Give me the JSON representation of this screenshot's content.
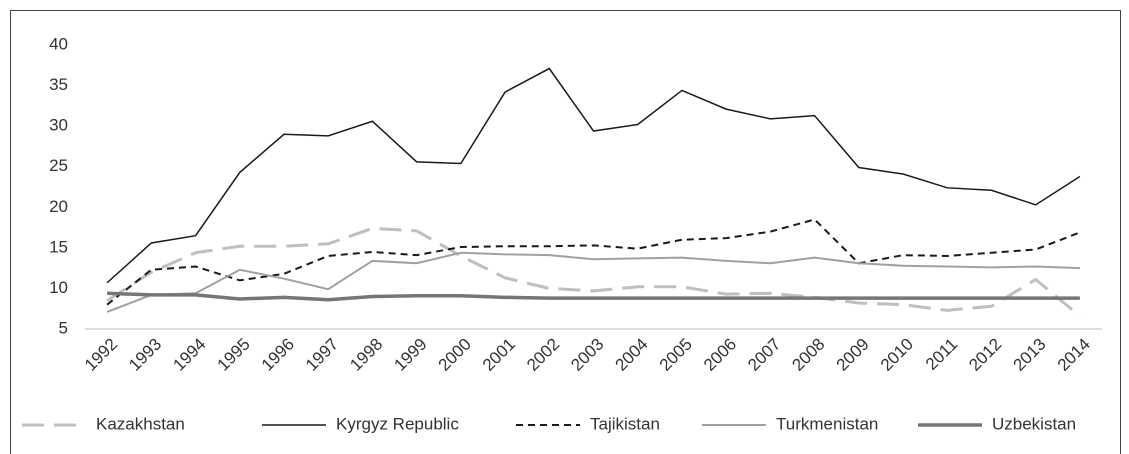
{
  "chart_data": {
    "type": "line",
    "categories": [
      "1992",
      "1993",
      "1994",
      "1995",
      "1996",
      "1997",
      "1998",
      "1999",
      "2000",
      "2001",
      "2002",
      "2003",
      "2004",
      "2005",
      "2006",
      "2007",
      "2008",
      "2009",
      "2010",
      "2011",
      "2012",
      "2013",
      "2014"
    ],
    "ylim": [
      5,
      40
    ],
    "yticks": [
      5,
      10,
      15,
      20,
      25,
      30,
      35,
      40
    ],
    "grid": false,
    "legend": "bottom",
    "series": [
      {
        "name": "Kazakhstan",
        "color": "#bfbfbf",
        "dash": "long",
        "values": [
          8.5,
          12.0,
          14.4,
          15.2,
          15.2,
          15.5,
          17.4,
          17.1,
          14.0,
          11.3,
          10.0,
          9.7,
          10.2,
          10.2,
          9.3,
          9.4,
          8.9,
          8.2,
          8.0,
          7.3,
          7.8,
          11.1,
          6.6
        ]
      },
      {
        "name": "Kyrgyz Republic",
        "color": "#1a1a1a",
        "dash": "solid",
        "values": [
          10.7,
          15.6,
          16.5,
          24.3,
          29.0,
          28.8,
          30.6,
          25.6,
          25.4,
          34.2,
          37.1,
          29.4,
          30.2,
          34.4,
          32.1,
          30.9,
          31.3,
          24.9,
          24.1,
          22.4,
          22.1,
          20.3,
          23.8
        ]
      },
      {
        "name": "Tajikistan",
        "color": "#1a1a1a",
        "dash": "short",
        "values": [
          8.0,
          12.3,
          12.7,
          11.0,
          11.8,
          14.0,
          14.5,
          14.1,
          15.1,
          15.2,
          15.2,
          15.3,
          14.9,
          16.0,
          16.2,
          17.0,
          18.5,
          13.1,
          14.1,
          14.0,
          14.4,
          14.8,
          16.9
        ]
      },
      {
        "name": "Turkmenistan",
        "color": "#a0a0a0",
        "dash": "solid",
        "values": [
          7.1,
          9.2,
          9.4,
          12.3,
          11.2,
          9.9,
          13.4,
          13.1,
          14.4,
          14.2,
          14.1,
          13.6,
          13.7,
          13.8,
          13.4,
          13.1,
          13.8,
          13.1,
          12.8,
          12.7,
          12.6,
          12.7,
          12.5
        ]
      },
      {
        "name": "Uzbekistan",
        "color": "#767676",
        "dash": "solid",
        "values": [
          9.4,
          9.2,
          9.2,
          8.7,
          8.9,
          8.6,
          9.0,
          9.1,
          9.1,
          8.9,
          8.8,
          8.8,
          8.8,
          8.8,
          8.8,
          8.8,
          8.8,
          8.8,
          8.8,
          8.8,
          8.8,
          8.8,
          8.8
        ]
      }
    ]
  }
}
